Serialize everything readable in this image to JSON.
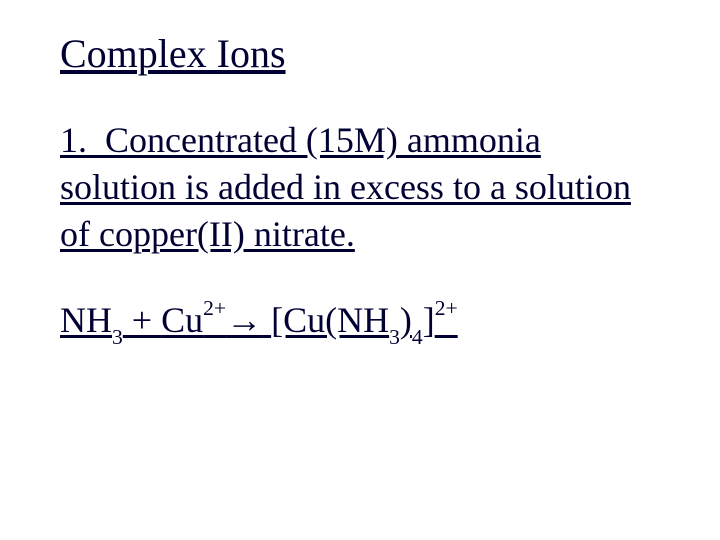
{
  "text_color": "#000033",
  "background_color": "#ffffff",
  "font_family": "Times New Roman",
  "title": "Complex Ions",
  "problem": {
    "number": "1.",
    "text_part1": "Concentrated (15M) ammonia solution is added in excess to a solution of copper(II) nitrate."
  },
  "equation": {
    "nh3_base": "NH",
    "nh3_sub": "3",
    "plus": " + ",
    "cu_base": "Cu",
    "cu_sup": "2+",
    "arrow": "→",
    "space": " ",
    "bracket_open": "[Cu(NH",
    "inner_sub": "3",
    "paren_close": ")",
    "four_sub": "4",
    "bracket_close": "]",
    "final_sup": "2+"
  }
}
